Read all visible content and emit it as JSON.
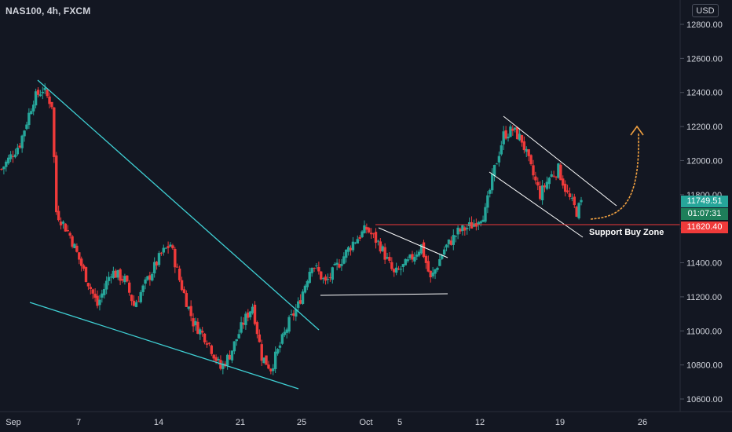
{
  "header": {
    "symbol_line": "NAS100, 4h, FXCM"
  },
  "currency_button": "USD",
  "price_tags": {
    "last_price": "11749.51",
    "countdown": "01:07:31",
    "support_level": "11620.40"
  },
  "annotations": {
    "support_label": "Support Buy Zone"
  },
  "colors": {
    "background": "#131722",
    "up_candle": "#26a69a",
    "down_candle": "#ef3a3a",
    "trendline": "#3fd0d4",
    "pattern_line": "#ffffff",
    "support_line": "#ef3a3a",
    "arrow": "#f0a040"
  },
  "chart_data": {
    "type": "candlestick",
    "symbol": "NAS100",
    "timeframe": "4h",
    "source": "FXCM",
    "y_axis": {
      "ticks": [
        10600,
        10800,
        11000,
        11200,
        11400,
        11600,
        11800,
        12000,
        12200,
        12400,
        12600,
        12800
      ],
      "tick_labels": [
        "10600.00",
        "10800.00",
        "11000.00",
        "11200.00",
        "11400.00",
        "11600.00",
        "11800.00",
        "12000.00",
        "12200.00",
        "12400.00",
        "12600.00",
        "12800.00"
      ],
      "ylim": [
        10560,
        12870
      ]
    },
    "x_axis": {
      "tick_labels": [
        "Sep",
        "7",
        "14",
        "21",
        "25",
        "Oct",
        "5",
        "12",
        "19",
        "26"
      ]
    },
    "approx_close_path": [
      [
        0,
        11950
      ],
      [
        8,
        12100
      ],
      [
        14,
        12360
      ],
      [
        18,
        12420
      ],
      [
        22,
        12330
      ],
      [
        24,
        11700
      ],
      [
        30,
        11560
      ],
      [
        36,
        11350
      ],
      [
        42,
        11150
      ],
      [
        48,
        11350
      ],
      [
        54,
        11300
      ],
      [
        58,
        11150
      ],
      [
        64,
        11300
      ],
      [
        70,
        11450
      ],
      [
        74,
        11510
      ],
      [
        78,
        11300
      ],
      [
        84,
        11050
      ],
      [
        90,
        10950
      ],
      [
        96,
        10780
      ],
      [
        100,
        10860
      ],
      [
        106,
        11050
      ],
      [
        110,
        11150
      ],
      [
        114,
        10850
      ],
      [
        118,
        10780
      ],
      [
        121,
        10880
      ],
      [
        126,
        11050
      ],
      [
        130,
        11150
      ],
      [
        136,
        11400
      ],
      [
        142,
        11280
      ],
      [
        148,
        11400
      ],
      [
        154,
        11520
      ],
      [
        160,
        11600
      ],
      [
        166,
        11500
      ],
      [
        172,
        11330
      ],
      [
        178,
        11400
      ],
      [
        184,
        11500
      ],
      [
        188,
        11300
      ],
      [
        194,
        11480
      ],
      [
        200,
        11580
      ],
      [
        206,
        11620
      ],
      [
        212,
        11700
      ],
      [
        216,
        11950
      ],
      [
        220,
        12150
      ],
      [
        224,
        12180
      ],
      [
        228,
        12120
      ],
      [
        232,
        11950
      ],
      [
        236,
        11800
      ],
      [
        240,
        11900
      ],
      [
        244,
        11950
      ],
      [
        248,
        11800
      ],
      [
        252,
        11700
      ],
      [
        254,
        11749.51
      ]
    ],
    "levels": {
      "support_buy_zone": 11620.4,
      "last_price": 11749.51
    }
  }
}
